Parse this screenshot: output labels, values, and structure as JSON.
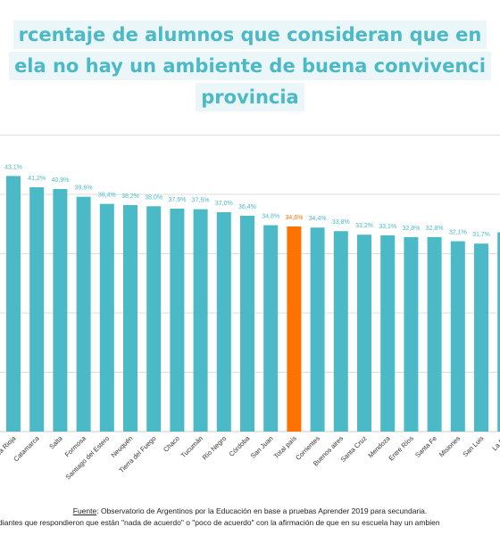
{
  "title": {
    "lines": [
      "rcentaje de alumnos que consideran que en",
      "ela no hay un ambiente de buena convivenci",
      "provincia"
    ]
  },
  "footer": {
    "source_label": "Fuente",
    "source_text": ": Observatorio de Argentinos por la Educación en base a pruebas Aprender 2019 para secundaria.",
    "note": "diantes que respondieron que  están \"nada de acuerdo\" o \"poco de acuerdo\" con la afirmación de que en su escuela hay un ambien"
  },
  "colors": {
    "bar": "#4bbac6",
    "highlight": "#ff7200",
    "label": "#4bbac6",
    "grid": "#dddddd"
  },
  "chart_data": {
    "type": "bar",
    "categories": [
      "La Rioja",
      "Catamarca",
      "Salta",
      "Formosa",
      "Santiago del Estero",
      "Neuquén",
      "Tierra del Fuego",
      "Chaco",
      "Tucumán",
      "Río Negro",
      "Córdoba",
      "San Juan",
      "Total país",
      "Corrientes",
      "Buenos aires",
      "Santa Cruz",
      "Mendoza",
      "Entre Ríos",
      "Santa Fe",
      "Misiones",
      "San Luis",
      "La Pa"
    ],
    "values": [
      43.1,
      41.2,
      40.9,
      39.6,
      38.4,
      38.2,
      38.0,
      37.6,
      37.5,
      37.0,
      36.4,
      34.8,
      34.6,
      34.4,
      33.8,
      33.2,
      33.1,
      32.8,
      32.8,
      32.1,
      31.7,
      null
    ],
    "data_labels": [
      "43,1%",
      "41,2%",
      "40,9%",
      "39,6%",
      "38,4%",
      "38,2%",
      "38,0%",
      "37,6%",
      "37,5%",
      "37,0%",
      "36,4%",
      "34,8%",
      "34,6%",
      "34,4%",
      "33,8%",
      "33,2%",
      "33,1%",
      "32,8%",
      "32,8%",
      "32,1%",
      "31,7%",
      ""
    ],
    "highlight_category": "Total país",
    "ylim": [
      0,
      50
    ],
    "gridlines": [
      10,
      20,
      30,
      40,
      50
    ],
    "grid": true,
    "legend": "none"
  }
}
